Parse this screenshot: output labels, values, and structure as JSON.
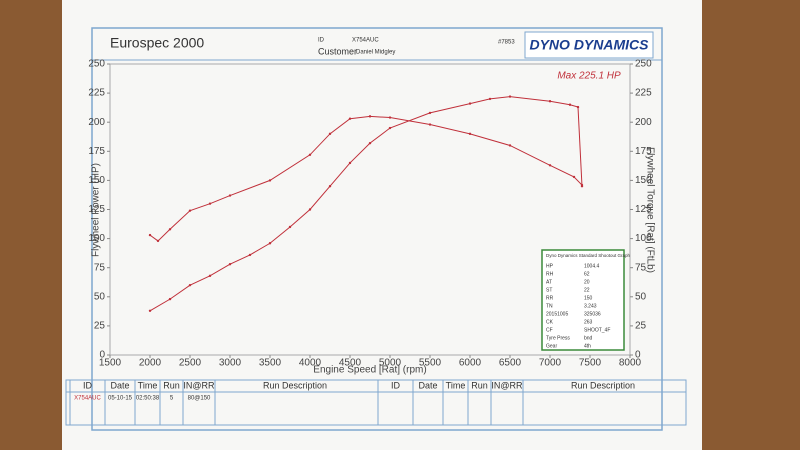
{
  "header": {
    "title": "Eurospec 2000",
    "id_label": "ID",
    "id": "X754AUC",
    "customer_label": "Customer",
    "customer": "Daniel Midgley",
    "number": "#7853",
    "logo": "DYNO DYNAMICS"
  },
  "chart_data": {
    "type": "line",
    "xlabel": "Engine Speed [Rat] (rpm)",
    "ylabel": "Flywheel Power (HP)",
    "y2label": "Flywheel Torque [Rat] (FtLb)",
    "annotation": "Max 225.1 HP",
    "xlim": [
      1500,
      8000
    ],
    "xticks": [
      1500,
      2000,
      2500,
      3000,
      3500,
      4000,
      4500,
      5000,
      5500,
      6000,
      6500,
      7000,
      7500,
      8000
    ],
    "ylim": [
      0,
      250
    ],
    "yticks": [
      0,
      25,
      50,
      75,
      100,
      125,
      150,
      175,
      200,
      225,
      250
    ],
    "y2lim": [
      0,
      250
    ],
    "y2ticks": [
      0,
      25,
      50,
      75,
      100,
      125,
      150,
      175,
      200,
      225,
      250
    ],
    "series": [
      {
        "color": "#c0303a",
        "axis": "y",
        "x": [
          2000,
          2250,
          2500,
          2750,
          3000,
          3250,
          3500,
          3750,
          4000,
          4250,
          4500,
          4750,
          5000,
          5500,
          6000,
          6250,
          6500,
          7000,
          7250,
          7350,
          7400
        ],
        "values": [
          38,
          48,
          60,
          68,
          78,
          86,
          96,
          110,
          125,
          145,
          165,
          182,
          195,
          208,
          216,
          220,
          222,
          218,
          215,
          213,
          145
        ]
      },
      {
        "color": "#c0303a",
        "axis": "y2",
        "x": [
          2000,
          2100,
          2250,
          2500,
          2750,
          3000,
          3500,
          4000,
          4250,
          4500,
          4750,
          5000,
          5500,
          6000,
          6500,
          7000,
          7300,
          7400
        ],
        "values": [
          103,
          98,
          108,
          124,
          130,
          137,
          150,
          172,
          190,
          203,
          205,
          204,
          198,
          190,
          180,
          163,
          153,
          146
        ]
      }
    ]
  },
  "info_box": {
    "title": "Dyno Dynamics Standard Shootout Graph",
    "rows": [
      [
        "HP",
        "1004.4"
      ],
      [
        "RH",
        "62"
      ],
      [
        "AT",
        "20"
      ],
      [
        "ST",
        "22"
      ],
      [
        "RR",
        "150"
      ],
      [
        "TN",
        "3.243"
      ],
      [
        "20151005",
        "325036"
      ],
      [
        "CK",
        "263"
      ],
      [
        "CF",
        "SHOOT_4F"
      ],
      [
        "Tyre Press",
        "bnd"
      ],
      [
        "Gear",
        "4th"
      ]
    ]
  },
  "table": {
    "headers": [
      "ID",
      "Date",
      "Time",
      "Run",
      "IN@RR",
      "Run Description"
    ],
    "rows": [
      [
        "X754AUC",
        "05-10-15",
        "02:50:38",
        "5",
        "80@150"
      ]
    ]
  }
}
